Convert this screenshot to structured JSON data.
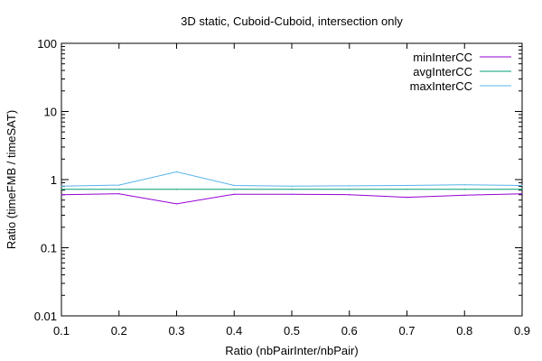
{
  "chart_data": {
    "type": "line",
    "title": "3D static, Cuboid-Cuboid, intersection only",
    "xlabel": "Ratio (nbPairInter/nbPair)",
    "ylabel": "Ratio (timeFMB / timeSAT)",
    "xscale": "linear",
    "yscale": "log",
    "xlim": [
      0.1,
      0.9
    ],
    "ylim": [
      0.01,
      100
    ],
    "x_ticks": [
      {
        "value": 0.1,
        "label": "0.1"
      },
      {
        "value": 0.2,
        "label": "0.2"
      },
      {
        "value": 0.3,
        "label": "0.3"
      },
      {
        "value": 0.4,
        "label": "0.4"
      },
      {
        "value": 0.5,
        "label": "0.5"
      },
      {
        "value": 0.6,
        "label": "0.6"
      },
      {
        "value": 0.7,
        "label": "0.7"
      },
      {
        "value": 0.8,
        "label": "0.8"
      },
      {
        "value": 0.9,
        "label": "0.9"
      }
    ],
    "y_ticks": [
      {
        "value": 0.01,
        "label": "0.01"
      },
      {
        "value": 0.1,
        "label": "0.1"
      },
      {
        "value": 1,
        "label": "1"
      },
      {
        "value": 10,
        "label": "10"
      },
      {
        "value": 100,
        "label": "100"
      }
    ],
    "grid": false,
    "legend_position": "top-right",
    "x": [
      0.1,
      0.2,
      0.3,
      0.4,
      0.5,
      0.6,
      0.7,
      0.8,
      0.9
    ],
    "series": [
      {
        "name": "minInterCC",
        "color": "#9400d3",
        "values": [
          0.6,
          0.62,
          0.44,
          0.61,
          0.61,
          0.6,
          0.55,
          0.59,
          0.62
        ]
      },
      {
        "name": "avgInterCC",
        "color": "#009e73",
        "values": [
          0.72,
          0.72,
          0.72,
          0.72,
          0.72,
          0.72,
          0.72,
          0.72,
          0.72
        ]
      },
      {
        "name": "maxInterCC",
        "color": "#56b4e9",
        "values": [
          0.8,
          0.83,
          1.3,
          0.82,
          0.8,
          0.81,
          0.82,
          0.84,
          0.82
        ]
      }
    ]
  }
}
